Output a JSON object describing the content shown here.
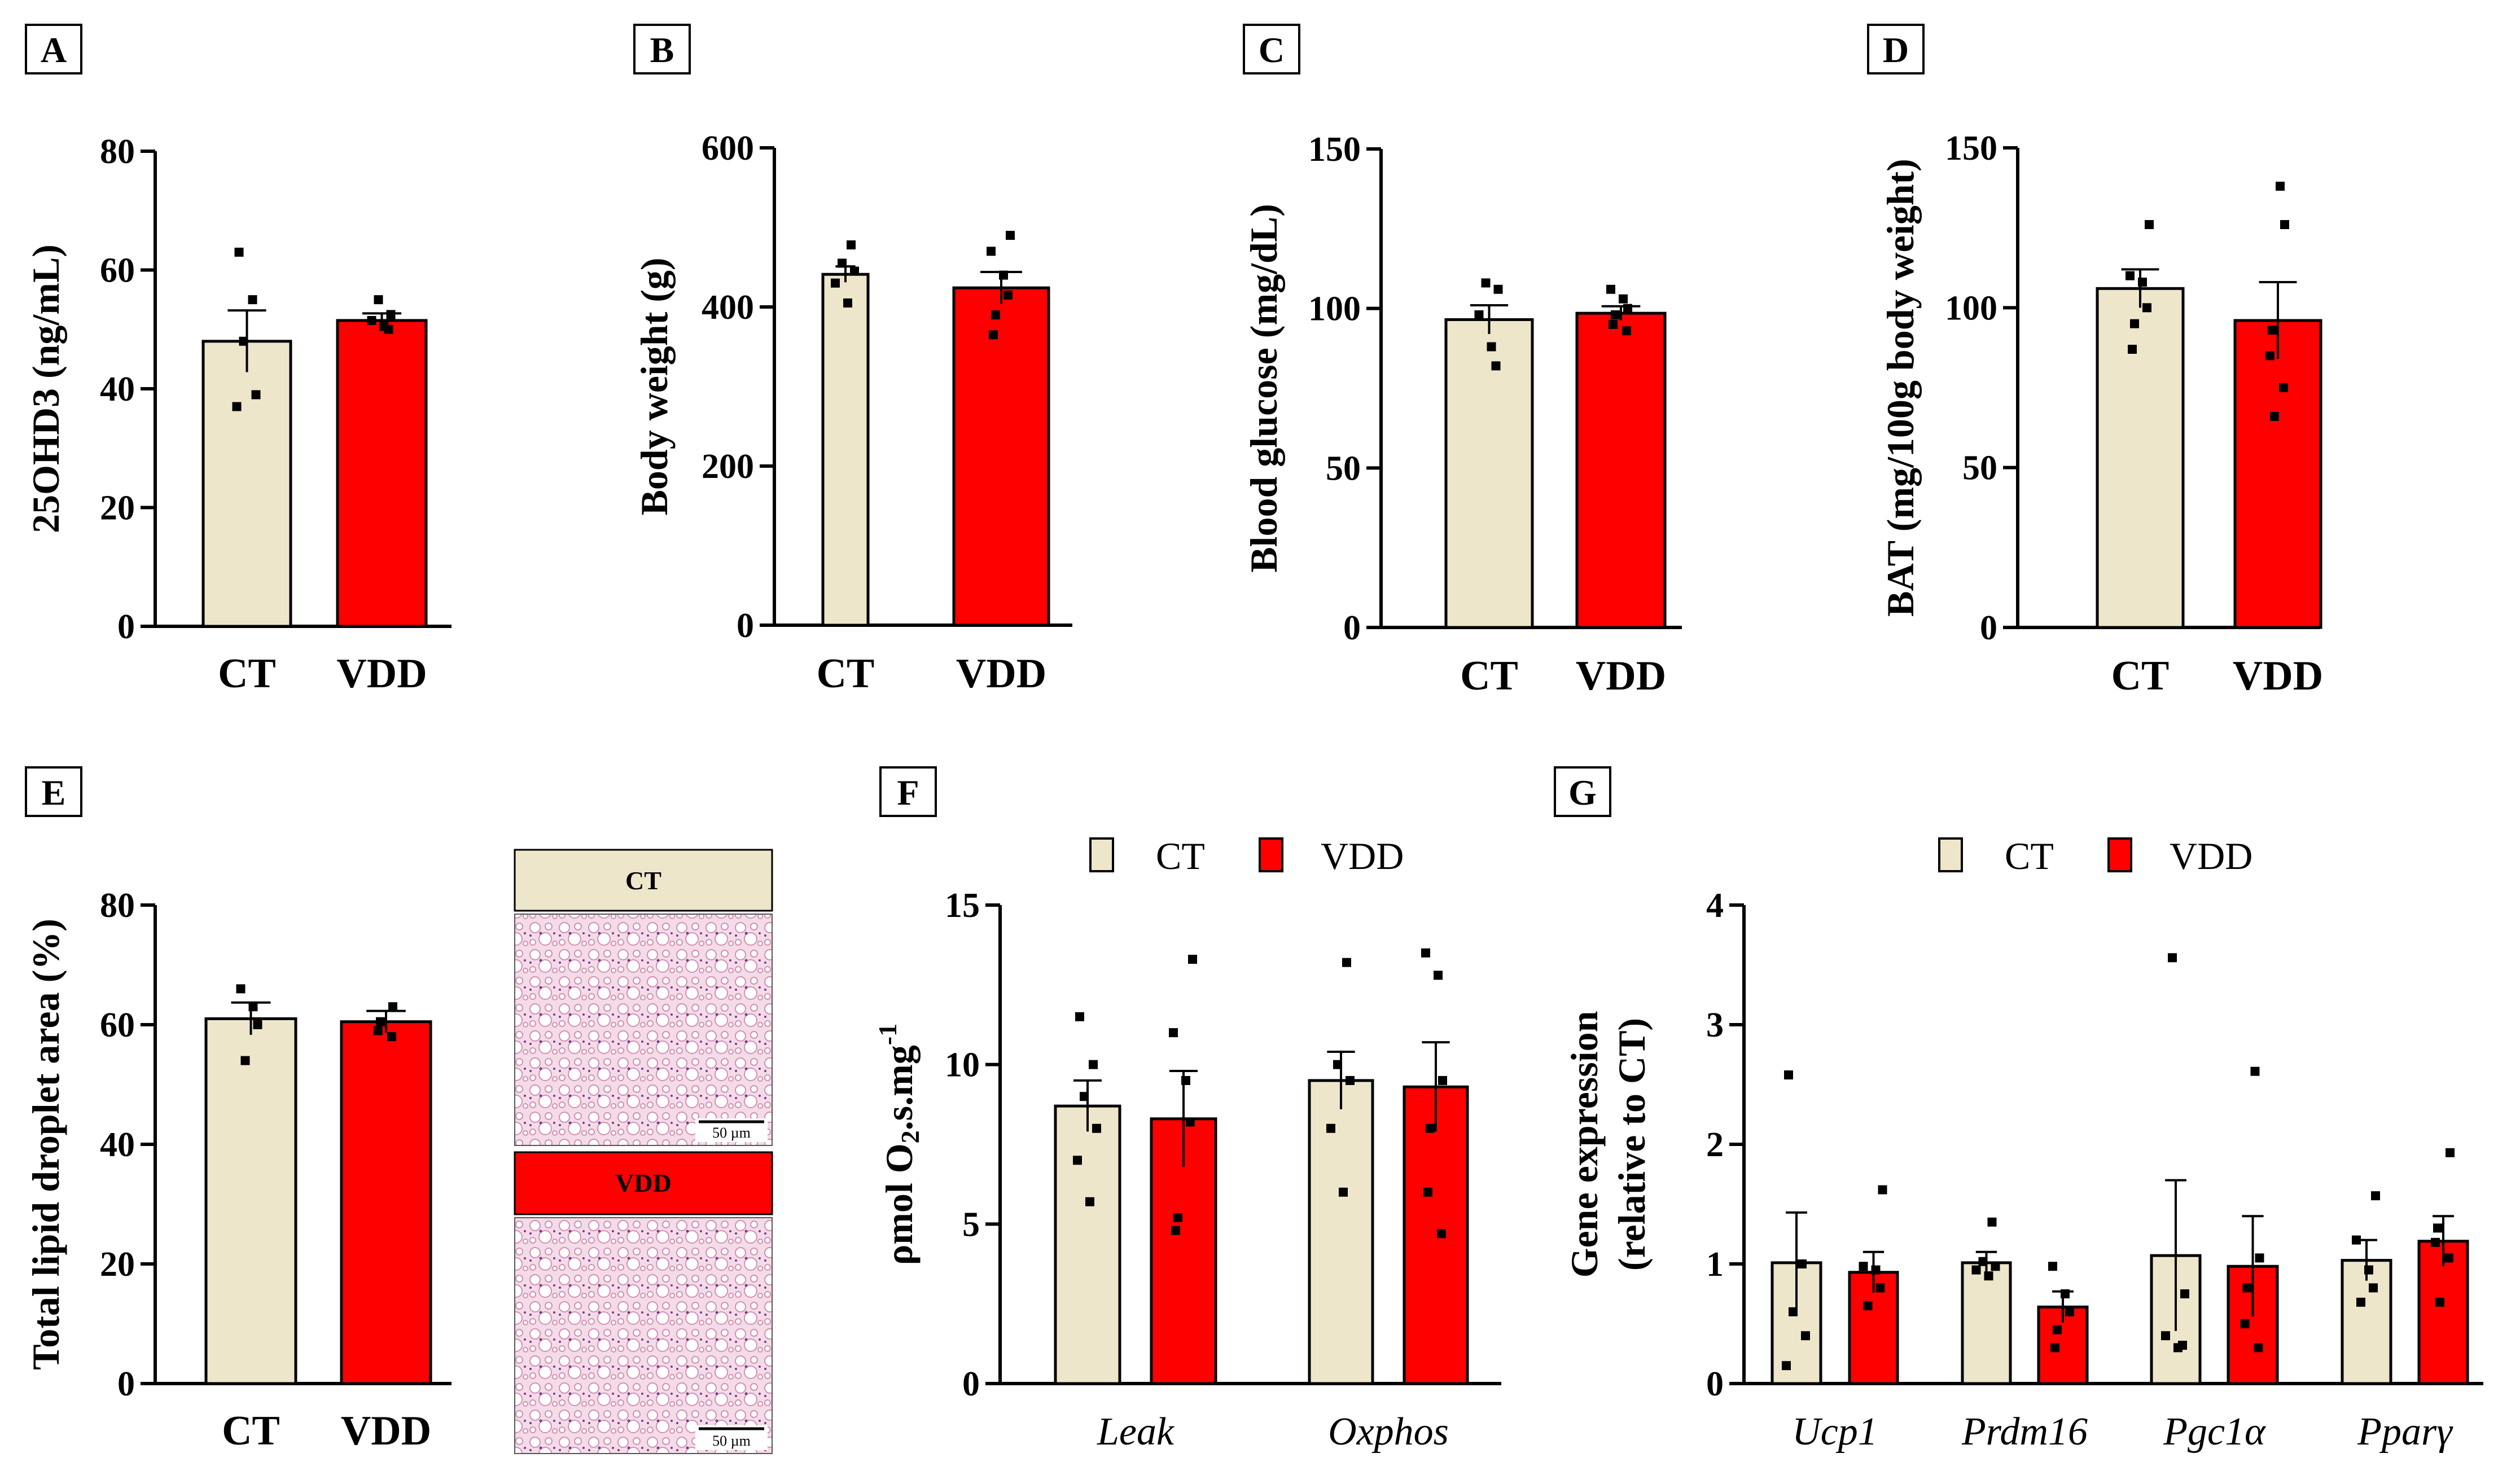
{
  "colors": {
    "ct": "#ede6ca",
    "vdd": "#ff0000",
    "axis": "#000000"
  },
  "legend": {
    "ct": "CT",
    "vdd": "VDD"
  },
  "histology": {
    "ct_label": "CT",
    "vdd_label": "VDD",
    "scale_ct": "50 µm",
    "scale_vdd": "50 µm"
  },
  "chart_data": [
    {
      "panel": "A",
      "type": "bar",
      "ylabel": "25OHD3  (ng/mL)",
      "categories": [
        "CT",
        "VDD"
      ],
      "ylim": [
        0,
        80
      ],
      "yticks": [
        0,
        20,
        40,
        60,
        80
      ],
      "values": [
        48,
        51.5
      ],
      "sem": [
        5.2,
        1.2
      ],
      "points": [
        [
          63,
          55,
          48,
          39,
          37
        ],
        [
          55,
          52.5,
          51.5,
          50.5,
          50
        ]
      ]
    },
    {
      "panel": "B",
      "type": "bar",
      "ylabel": "Body weight  (g)",
      "categories": [
        "CT",
        "VDD"
      ],
      "ylim": [
        0,
        600
      ],
      "yticks": [
        0,
        200,
        400,
        600
      ],
      "values": [
        441,
        424
      ],
      "sem": [
        10,
        20
      ],
      "points": [
        [
          478,
          455,
          445,
          430,
          405
        ],
        [
          490,
          470,
          440,
          415,
          390,
          365
        ]
      ]
    },
    {
      "panel": "C",
      "type": "bar",
      "ylabel": "Blood glucose (mg/dL)",
      "categories": [
        "CT",
        "VDD"
      ],
      "ylim": [
        0,
        150
      ],
      "yticks": [
        0,
        50,
        100,
        150
      ],
      "values": [
        96.5,
        98.5
      ],
      "sem": [
        4.5,
        2.2
      ],
      "points": [
        [
          108,
          106,
          98,
          88,
          82
        ],
        [
          106,
          103,
          100,
          98,
          95,
          93
        ]
      ]
    },
    {
      "panel": "D",
      "type": "bar",
      "ylabel": "BAT (mg/100g body weight)",
      "categories": [
        "CT",
        "VDD"
      ],
      "ylim": [
        0,
        150
      ],
      "yticks": [
        0,
        50,
        100,
        150
      ],
      "values": [
        106,
        96
      ],
      "sem": [
        6,
        12
      ],
      "points": [
        [
          126,
          110,
          108,
          100,
          95,
          87
        ],
        [
          138,
          126,
          93,
          85,
          75,
          66
        ]
      ]
    },
    {
      "panel": "E",
      "type": "bar",
      "ylabel": "Total lipid droplet area (%)",
      "categories": [
        "CT",
        "VDD"
      ],
      "ylim": [
        0,
        80
      ],
      "yticks": [
        0,
        20,
        40,
        60,
        80
      ],
      "values": [
        61,
        60.5
      ],
      "sem": [
        2.7,
        1.8
      ],
      "points": [
        [
          66,
          63,
          60,
          54
        ],
        [
          63,
          60.5,
          59,
          58
        ]
      ]
    },
    {
      "panel": "F",
      "type": "bar",
      "ylabel": "ρmol O2.s.mg-1",
      "categories": [
        "Leak",
        "Oxphos"
      ],
      "series": [
        {
          "name": "CT",
          "values": [
            8.7,
            9.5
          ],
          "sem": [
            0.8,
            0.9
          ],
          "points": [
            [
              11.5,
              10,
              9,
              8,
              7,
              5.7
            ],
            [
              13.2,
              10,
              9.5,
              8,
              6
            ]
          ]
        },
        {
          "name": "VDD",
          "values": [
            8.3,
            9.3
          ],
          "sem": [
            1.5,
            1.4
          ],
          "points": [
            [
              13.3,
              11,
              9.5,
              8.2,
              5.2,
              4.8
            ],
            [
              13.5,
              12.8,
              9.5,
              8,
              6,
              4.7
            ]
          ]
        }
      ],
      "ylim": [
        0,
        15
      ],
      "yticks": [
        0,
        5,
        10,
        15
      ],
      "legend": "top"
    },
    {
      "panel": "G",
      "type": "bar",
      "ylabel": "Gene expression (relative to CT)",
      "categories": [
        "Ucp1",
        "Prdm16",
        "Pgc1α",
        "Pparγ"
      ],
      "series": [
        {
          "name": "CT",
          "values": [
            1.01,
            1.01,
            1.07,
            1.03
          ],
          "sem": [
            0.42,
            0.09,
            0.63,
            0.17
          ],
          "points": [
            [
              2.58,
              1.0,
              0.6,
              0.4,
              0.15
            ],
            [
              1.35,
              1.02,
              0.98,
              0.95,
              0.9
            ],
            [
              3.56,
              0.75,
              0.4,
              0.3,
              0.32
            ],
            [
              1.57,
              1.2,
              0.95,
              0.8,
              0.68
            ]
          ]
        },
        {
          "name": "VDD",
          "values": [
            0.93,
            0.64,
            0.98,
            1.19
          ],
          "sem": [
            0.17,
            0.13,
            0.42,
            0.21
          ],
          "points": [
            [
              1.62,
              0.98,
              0.95,
              0.8,
              0.65
            ],
            [
              0.98,
              0.75,
              0.6,
              0.45,
              0.3
            ],
            [
              2.61,
              1.05,
              0.8,
              0.5,
              0.3
            ],
            [
              1.93,
              1.3,
              1.18,
              1.05,
              0.68
            ]
          ]
        }
      ],
      "ylim": [
        0,
        4
      ],
      "yticks": [
        0,
        1,
        2,
        3,
        4
      ],
      "legend": "top"
    }
  ]
}
